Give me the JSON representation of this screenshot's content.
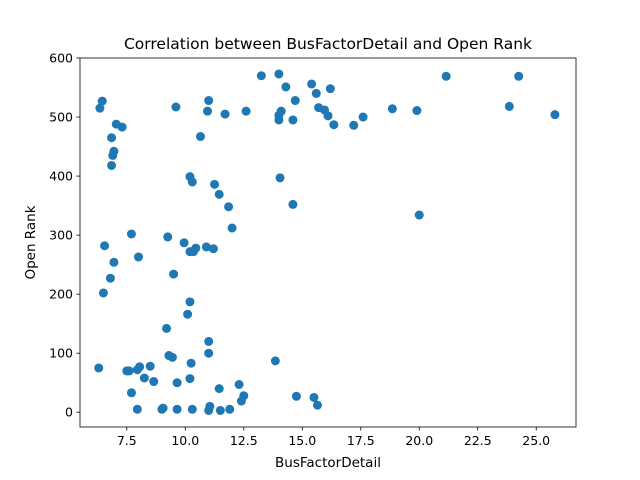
{
  "chart_data": {
    "type": "scatter",
    "title": "Correlation between BusFactorDetail and Open Rank",
    "xlabel": "BusFactorDetail",
    "ylabel": "Open Rank",
    "xlim": [
      5.5,
      26.7
    ],
    "ylim": [
      -25,
      600
    ],
    "xticks": [
      7.5,
      10.0,
      12.5,
      15.0,
      17.5,
      20.0,
      22.5,
      25.0
    ],
    "xtick_labels": [
      "7.5",
      "10.0",
      "12.5",
      "15.0",
      "17.5",
      "20.0",
      "22.5",
      "25.0"
    ],
    "yticks": [
      0,
      100,
      200,
      300,
      400,
      500,
      600
    ],
    "ytick_labels": [
      "0",
      "100",
      "200",
      "300",
      "400",
      "500",
      "600"
    ],
    "grid": false,
    "legend": "none",
    "marker_color": "#1f77b4",
    "points": [
      [
        6.45,
        527
      ],
      [
        6.35,
        515
      ],
      [
        6.85,
        465
      ],
      [
        7.05,
        488
      ],
      [
        7.3,
        483
      ],
      [
        6.95,
        442
      ],
      [
        6.9,
        435
      ],
      [
        6.85,
        418
      ],
      [
        7.7,
        302
      ],
      [
        6.55,
        282
      ],
      [
        8.0,
        263
      ],
      [
        6.95,
        254
      ],
      [
        6.8,
        227
      ],
      [
        6.5,
        202
      ],
      [
        6.3,
        75
      ],
      [
        7.5,
        70
      ],
      [
        7.6,
        70
      ],
      [
        7.95,
        72
      ],
      [
        8.05,
        77
      ],
      [
        7.7,
        33
      ],
      [
        7.95,
        5
      ],
      [
        8.25,
        58
      ],
      [
        8.5,
        78
      ],
      [
        8.65,
        52
      ],
      [
        9.0,
        5
      ],
      [
        9.05,
        7
      ],
      [
        9.2,
        142
      ],
      [
        9.3,
        96
      ],
      [
        9.45,
        93
      ],
      [
        9.25,
        297
      ],
      [
        9.5,
        234
      ],
      [
        9.65,
        50
      ],
      [
        9.65,
        5
      ],
      [
        9.6,
        517
      ],
      [
        9.95,
        287
      ],
      [
        10.1,
        166
      ],
      [
        10.2,
        187
      ],
      [
        10.25,
        83
      ],
      [
        10.2,
        57
      ],
      [
        10.2,
        272
      ],
      [
        10.35,
        272
      ],
      [
        10.45,
        278
      ],
      [
        10.3,
        5
      ],
      [
        10.2,
        399
      ],
      [
        10.3,
        390
      ],
      [
        10.65,
        467
      ],
      [
        10.9,
        280
      ],
      [
        10.95,
        510
      ],
      [
        11.0,
        528
      ],
      [
        11.0,
        100
      ],
      [
        11.0,
        120
      ],
      [
        11.0,
        3
      ],
      [
        11.05,
        10
      ],
      [
        11.2,
        277
      ],
      [
        11.25,
        386
      ],
      [
        11.45,
        369
      ],
      [
        11.45,
        40
      ],
      [
        11.5,
        3
      ],
      [
        11.7,
        505
      ],
      [
        11.85,
        348
      ],
      [
        11.9,
        5
      ],
      [
        12.0,
        312
      ],
      [
        12.3,
        47
      ],
      [
        12.4,
        19
      ],
      [
        12.5,
        28
      ],
      [
        12.6,
        510
      ],
      [
        13.25,
        570
      ],
      [
        13.85,
        87
      ],
      [
        14.0,
        573
      ],
      [
        14.0,
        503
      ],
      [
        14.0,
        495
      ],
      [
        14.1,
        510
      ],
      [
        14.05,
        397
      ],
      [
        14.3,
        551
      ],
      [
        14.6,
        352
      ],
      [
        14.6,
        495
      ],
      [
        14.7,
        528
      ],
      [
        14.75,
        27
      ],
      [
        15.4,
        556
      ],
      [
        15.5,
        25
      ],
      [
        15.6,
        540
      ],
      [
        15.7,
        516
      ],
      [
        15.65,
        12
      ],
      [
        15.95,
        512
      ],
      [
        16.1,
        502
      ],
      [
        16.2,
        548
      ],
      [
        16.35,
        487
      ],
      [
        17.2,
        486
      ],
      [
        17.6,
        500
      ],
      [
        18.85,
        514
      ],
      [
        19.9,
        511
      ],
      [
        20.0,
        334
      ],
      [
        21.15,
        569
      ],
      [
        23.85,
        518
      ],
      [
        24.25,
        569
      ],
      [
        25.8,
        504
      ]
    ]
  }
}
